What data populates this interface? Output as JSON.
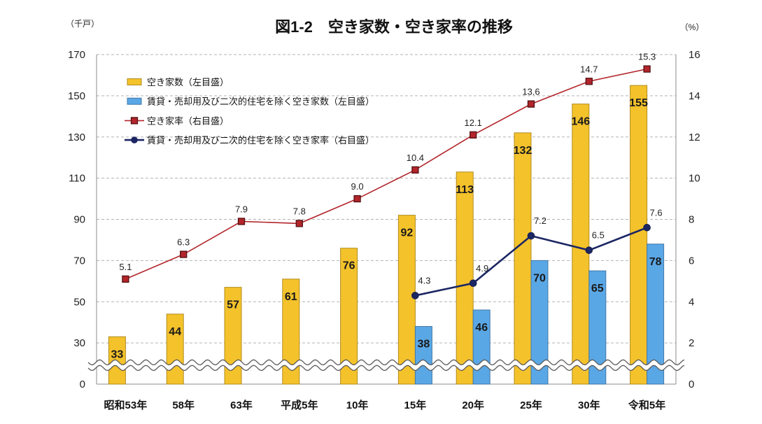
{
  "chart_data": {
    "type": "bar",
    "title": "図1-2　空き家数・空き家率の推移",
    "categories": [
      "昭和53年",
      "58年",
      "63年",
      "平成5年",
      "10年",
      "15年",
      "20年",
      "25年",
      "30年",
      "令和5年"
    ],
    "y_left": {
      "label": "（千戸）",
      "range": [
        0,
        170
      ],
      "ticks": [
        0,
        30,
        50,
        70,
        90,
        110,
        130,
        150,
        170
      ],
      "axis_break": [
        0,
        30
      ]
    },
    "y_right": {
      "label": "（%）",
      "range": [
        0,
        16
      ],
      "ticks": [
        0,
        2,
        4,
        6,
        8,
        10,
        12,
        14,
        16
      ]
    },
    "grid": true,
    "legend": "top-left",
    "series": [
      {
        "name": "空き家数（左目盛）",
        "type": "bar",
        "axis": "left",
        "color": "#F4C22B",
        "values": [
          33,
          44,
          57,
          61,
          76,
          92,
          113,
          132,
          146,
          155
        ]
      },
      {
        "name": "賃貸・売却用及び二次的住宅を除く空き家数（左目盛）",
        "type": "bar",
        "axis": "left",
        "color": "#5AA7E6",
        "values": [
          null,
          null,
          null,
          null,
          null,
          38,
          46,
          70,
          65,
          78
        ]
      },
      {
        "name": "空き家率（右目盛）",
        "type": "line",
        "axis": "right",
        "color": "#B3252B",
        "marker": "square",
        "values": [
          5.1,
          6.3,
          7.9,
          7.8,
          9.0,
          10.4,
          12.1,
          13.6,
          14.7,
          15.3
        ]
      },
      {
        "name": "賃貸・売却用及び二次的住宅を除く空き家率（右目盛）",
        "type": "line",
        "axis": "right",
        "color": "#1B2663",
        "marker": "circle",
        "values": [
          null,
          null,
          null,
          null,
          null,
          4.3,
          4.9,
          7.2,
          6.5,
          7.6
        ]
      }
    ]
  }
}
